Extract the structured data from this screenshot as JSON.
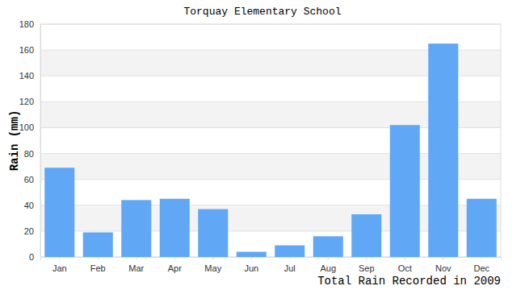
{
  "chart_data": {
    "type": "bar",
    "title": "Torquay Elementary School",
    "x_label": "Total Rain Recorded in 2009",
    "y_label": "Rain (mm)",
    "categories": [
      "Jan",
      "Feb",
      "Mar",
      "Apr",
      "May",
      "Jun",
      "Jul",
      "Aug",
      "Sep",
      "Oct",
      "Nov",
      "Dec"
    ],
    "values": [
      69,
      19,
      44,
      45,
      37,
      4,
      9,
      16,
      33,
      102,
      165,
      45
    ],
    "color": "#60a8f5",
    "ylim": [
      0,
      180
    ],
    "yticks": [
      0,
      20,
      40,
      60,
      80,
      100,
      120,
      140,
      160,
      180
    ],
    "grid": true
  }
}
